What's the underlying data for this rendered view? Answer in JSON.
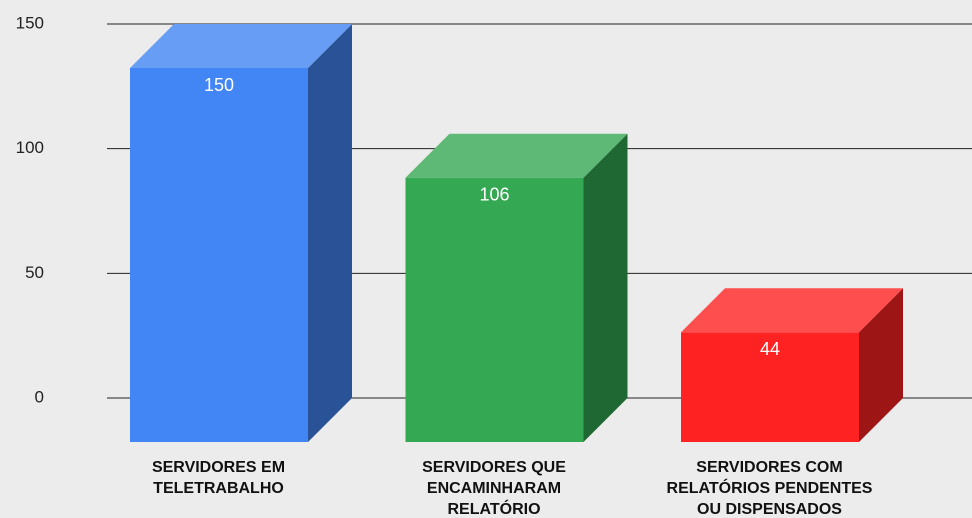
{
  "chart_data": {
    "type": "bar3d",
    "categories": [
      "SERVIDORES EM\nTELETRABALHO",
      "SERVIDORES QUE\nENCAMINHARAM\nRELATÓRIO",
      "SERVIDORES COM\nRELATÓRIOS PENDENTES\nOU DISPENSADOS"
    ],
    "values": [
      150,
      106,
      44
    ],
    "colors": [
      "#4285f4",
      "#34a853",
      "#ff2222"
    ],
    "ylim": [
      0,
      150
    ],
    "yticks": [
      0,
      50,
      100,
      150
    ],
    "grid": true
  }
}
